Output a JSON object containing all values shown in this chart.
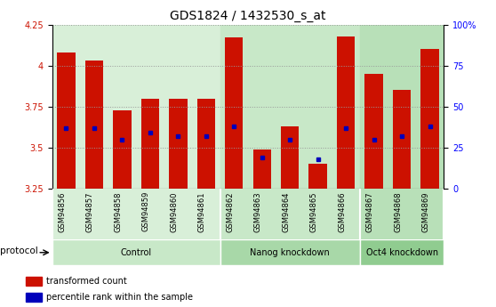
{
  "title": "GDS1824 / 1432530_s_at",
  "samples": [
    "GSM94856",
    "GSM94857",
    "GSM94858",
    "GSM94859",
    "GSM94860",
    "GSM94861",
    "GSM94862",
    "GSM94863",
    "GSM94864",
    "GSM94865",
    "GSM94866",
    "GSM94867",
    "GSM94868",
    "GSM94869"
  ],
  "bar_tops": [
    4.08,
    4.03,
    3.73,
    3.8,
    3.8,
    3.8,
    4.17,
    3.49,
    3.63,
    3.4,
    4.18,
    3.95,
    3.85,
    4.1
  ],
  "percentile_values": [
    3.62,
    3.62,
    3.55,
    3.59,
    3.57,
    3.57,
    3.63,
    3.44,
    3.55,
    3.43,
    3.62,
    3.55,
    3.57,
    3.63
  ],
  "bar_bottom": 3.25,
  "ylim": [
    3.25,
    4.25
  ],
  "yticks_left": [
    3.25,
    3.5,
    3.75,
    4.0,
    4.25
  ],
  "ytick_labels_left": [
    "3.25",
    "3.5",
    "3.75",
    "4",
    "4.25"
  ],
  "yticks_right_pct": [
    0,
    25,
    50,
    75,
    100
  ],
  "ytick_labels_right": [
    "0",
    "25",
    "50",
    "75",
    "100%"
  ],
  "groups": [
    {
      "label": "Control",
      "start": 0,
      "end": 6,
      "bg": "#d8efd8"
    },
    {
      "label": "Nanog knockdown",
      "start": 6,
      "end": 11,
      "bg": "#c0e8c0"
    },
    {
      "label": "Oct4 knockdown",
      "start": 11,
      "end": 14,
      "bg": "#a8e0a8"
    }
  ],
  "bar_color": "#cc1100",
  "percentile_color": "#0000bb",
  "grid_color": "#999999",
  "title_fontsize": 10,
  "axis_fontsize": 7,
  "protocol_label": "protocol",
  "legend_items": [
    "transformed count",
    "percentile rank within the sample"
  ]
}
